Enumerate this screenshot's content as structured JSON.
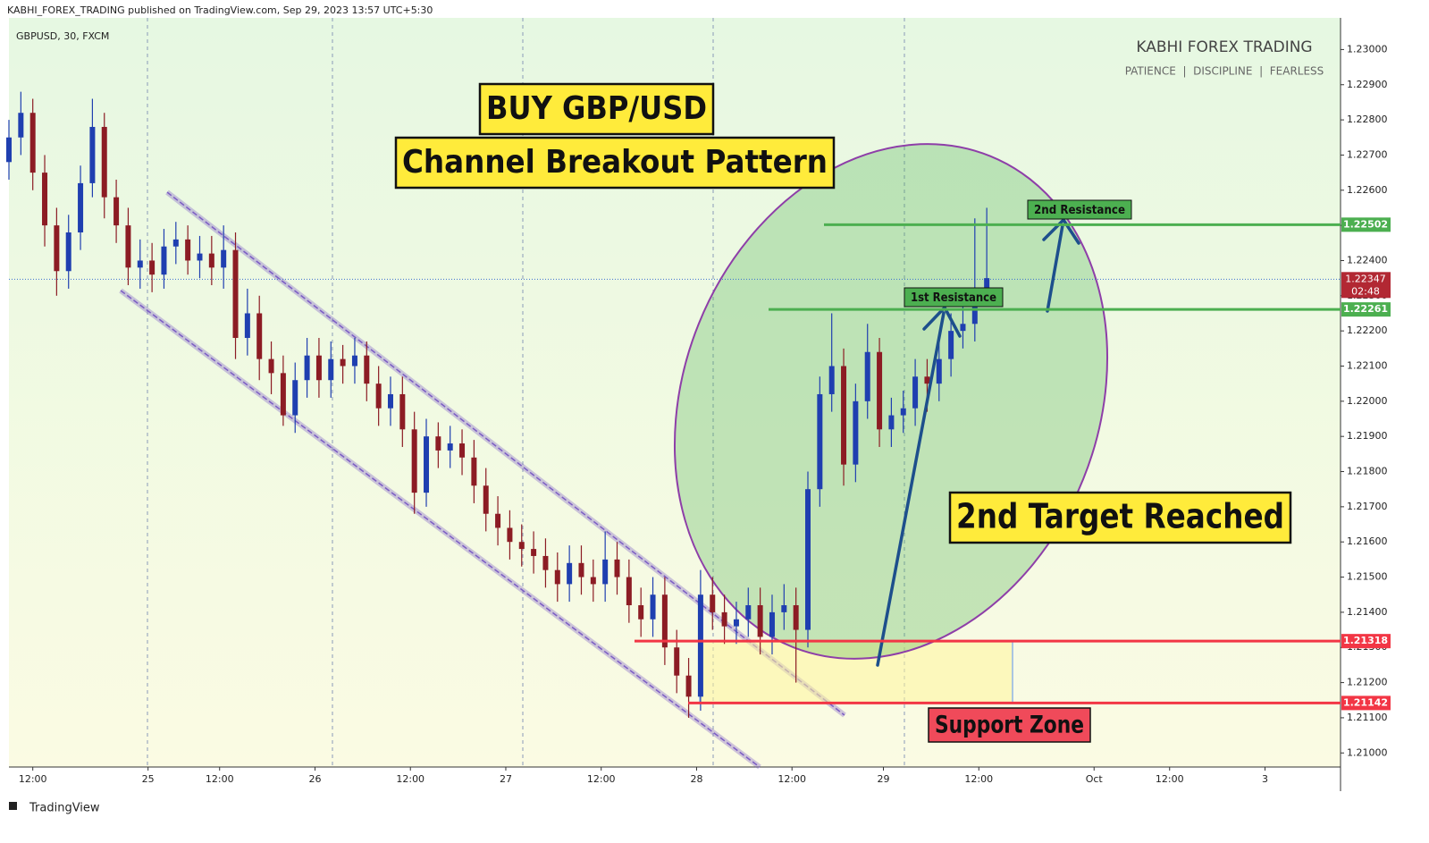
{
  "chart_data": {
    "type": "candlestick",
    "publisher_line": "KABHI_FOREX_TRADING published on TradingView.com, Sep 29, 2023 13:57 UTC+5:30",
    "symbol": "GBPUSD, 30, FXCM",
    "watermark_title": "KABHI FOREX TRADING",
    "watermark_subtitle": "PATIENCE  |  DISCIPLINE  |  FEARLESS",
    "footer": "TradingView",
    "up_color": "#1f3fb0",
    "down_color": "#8c1c24",
    "xlim": [
      0,
      335
    ],
    "ylim": [
      1.2096,
      1.2309
    ],
    "xticks": [
      {
        "value": 6,
        "label": "12:00"
      },
      {
        "value": 35,
        "label": "25"
      },
      {
        "value": 53,
        "label": "12:00"
      },
      {
        "value": 77,
        "label": "26"
      },
      {
        "value": 101,
        "label": "12:00"
      },
      {
        "value": 125,
        "label": "27"
      },
      {
        "value": 149,
        "label": "12:00"
      },
      {
        "value": 173,
        "label": "28"
      },
      {
        "value": 197,
        "label": "12:00"
      },
      {
        "value": 220,
        "label": "29"
      },
      {
        "value": 244,
        "label": "12:00"
      },
      {
        "value": 273,
        "label": "Oct"
      },
      {
        "value": 292,
        "label": "12:00"
      },
      {
        "value": 316,
        "label": "3"
      }
    ],
    "yticks": [
      {
        "value": 1.21,
        "label": "1.21000"
      },
      {
        "value": 1.211,
        "label": "1.21100"
      },
      {
        "value": 1.212,
        "label": "1.21200"
      },
      {
        "value": 1.213,
        "label": "1.21300"
      },
      {
        "value": 1.214,
        "label": "1.21400"
      },
      {
        "value": 1.215,
        "label": "1.21500"
      },
      {
        "value": 1.216,
        "label": "1.21600"
      },
      {
        "value": 1.217,
        "label": "1.21700"
      },
      {
        "value": 1.218,
        "label": "1.21800"
      },
      {
        "value": 1.219,
        "label": "1.21900"
      },
      {
        "value": 1.22,
        "label": "1.22000"
      },
      {
        "value": 1.221,
        "label": "1.22100"
      },
      {
        "value": 1.222,
        "label": "1.22200"
      },
      {
        "value": 1.223,
        "label": "1.22300"
      },
      {
        "value": 1.224,
        "label": "1.22400"
      },
      {
        "value": 1.225,
        "label": "1.22500"
      },
      {
        "value": 1.226,
        "label": "1.22600"
      },
      {
        "value": 1.227,
        "label": "1.22700"
      },
      {
        "value": 1.228,
        "label": "1.22800"
      },
      {
        "value": 1.229,
        "label": "1.22900"
      },
      {
        "value": 1.23,
        "label": "1.23000"
      }
    ],
    "candles": {
      "x": [
        0,
        3,
        6,
        9,
        12,
        15,
        18,
        21,
        24,
        27,
        30,
        33,
        36,
        39,
        42,
        45,
        48,
        51,
        54,
        57,
        60,
        63,
        66,
        69,
        72,
        75,
        78,
        81,
        84,
        87,
        90,
        93,
        96,
        99,
        102,
        105,
        108,
        111,
        114,
        117,
        120,
        123,
        126,
        129,
        132,
        135,
        138,
        141,
        144,
        147,
        150,
        153,
        156,
        159,
        162,
        165,
        168,
        171,
        174,
        177,
        180,
        183,
        186,
        189,
        192,
        195,
        198,
        201,
        204,
        207,
        210,
        213,
        216,
        219,
        222,
        225,
        228,
        231,
        234,
        237,
        240,
        243,
        246
      ],
      "open": [
        1.2268,
        1.2275,
        1.2282,
        1.2265,
        1.225,
        1.2237,
        1.2248,
        1.2262,
        1.2278,
        1.2258,
        1.225,
        1.2238,
        1.224,
        1.2236,
        1.2244,
        1.2246,
        1.224,
        1.2242,
        1.2238,
        1.2243,
        1.2218,
        1.2225,
        1.2212,
        1.2208,
        1.2196,
        1.2206,
        1.2213,
        1.2206,
        1.2212,
        1.221,
        1.2213,
        1.2205,
        1.2198,
        1.2202,
        1.2192,
        1.2174,
        1.219,
        1.2186,
        1.2188,
        1.2184,
        1.2176,
        1.2168,
        1.2164,
        1.216,
        1.2158,
        1.2156,
        1.2152,
        1.2148,
        1.2154,
        1.215,
        1.2148,
        1.2155,
        1.215,
        1.2142,
        1.2138,
        1.2145,
        1.213,
        1.2122,
        1.2116,
        1.2145,
        1.214,
        1.2136,
        1.2138,
        1.2142,
        1.2133,
        1.214,
        1.2142,
        1.2135,
        1.2175,
        1.2202,
        1.221,
        1.2182,
        1.22,
        1.2214,
        1.2192,
        1.2196,
        1.2198,
        1.2207,
        1.2205,
        1.2212,
        1.222,
        1.2222,
        1.2228
      ],
      "high": [
        1.228,
        1.2288,
        1.2286,
        1.227,
        1.2255,
        1.2253,
        1.2267,
        1.2286,
        1.2282,
        1.2263,
        1.2255,
        1.2246,
        1.2245,
        1.2249,
        1.2251,
        1.225,
        1.2247,
        1.2247,
        1.225,
        1.2248,
        1.2232,
        1.223,
        1.2217,
        1.2213,
        1.2211,
        1.2218,
        1.2218,
        1.2217,
        1.2216,
        1.2218,
        1.2217,
        1.221,
        1.2207,
        1.2207,
        1.2197,
        1.2195,
        1.2194,
        1.2193,
        1.2192,
        1.2189,
        1.2181,
        1.2173,
        1.2169,
        1.2165,
        1.2163,
        1.2161,
        1.2157,
        1.2159,
        1.2159,
        1.2155,
        1.2163,
        1.216,
        1.2155,
        1.2147,
        1.215,
        1.215,
        1.2135,
        1.2127,
        1.2152,
        1.215,
        1.2145,
        1.2143,
        1.2147,
        1.2147,
        1.2145,
        1.2148,
        1.2147,
        1.218,
        1.2207,
        1.2225,
        1.2215,
        1.2205,
        1.2222,
        1.2218,
        1.2201,
        1.2203,
        1.2212,
        1.2212,
        1.2217,
        1.2225,
        1.2227,
        1.2252,
        1.2255
      ],
      "low": [
        1.2263,
        1.227,
        1.226,
        1.2244,
        1.223,
        1.2232,
        1.2243,
        1.2258,
        1.2252,
        1.2245,
        1.2233,
        1.2232,
        1.2231,
        1.2232,
        1.2239,
        1.2236,
        1.2235,
        1.2233,
        1.2232,
        1.2212,
        1.2213,
        1.2206,
        1.2202,
        1.2193,
        1.2191,
        1.2201,
        1.2201,
        1.2201,
        1.2205,
        1.2205,
        1.22,
        1.2193,
        1.2193,
        1.2187,
        1.2168,
        1.217,
        1.2181,
        1.2181,
        1.2179,
        1.2171,
        1.2163,
        1.2159,
        1.2155,
        1.2153,
        1.2151,
        1.2147,
        1.2143,
        1.2143,
        1.2145,
        1.2143,
        1.2143,
        1.2145,
        1.2137,
        1.2133,
        1.2133,
        1.2125,
        1.2117,
        1.211,
        1.2112,
        1.2135,
        1.2131,
        1.2131,
        1.2133,
        1.2128,
        1.2128,
        1.2135,
        1.212,
        1.213,
        1.217,
        1.2197,
        1.2176,
        1.2177,
        1.2195,
        1.2187,
        1.2187,
        1.2191,
        1.2193,
        1.2197,
        1.22,
        1.2207,
        1.2215,
        1.2217,
        1.223
      ],
      "close": [
        1.2275,
        1.2282,
        1.2265,
        1.225,
        1.2237,
        1.2248,
        1.2262,
        1.2278,
        1.2258,
        1.225,
        1.2238,
        1.224,
        1.2236,
        1.2244,
        1.2246,
        1.224,
        1.2242,
        1.2238,
        1.2243,
        1.2218,
        1.2225,
        1.2212,
        1.2208,
        1.2196,
        1.2206,
        1.2213,
        1.2206,
        1.2212,
        1.221,
        1.2213,
        1.2205,
        1.2198,
        1.2202,
        1.2192,
        1.2174,
        1.219,
        1.2186,
        1.2188,
        1.2184,
        1.2176,
        1.2168,
        1.2164,
        1.216,
        1.2158,
        1.2156,
        1.2152,
        1.2148,
        1.2154,
        1.215,
        1.2148,
        1.2155,
        1.215,
        1.2142,
        1.2138,
        1.2145,
        1.213,
        1.2122,
        1.2116,
        1.2145,
        1.214,
        1.2136,
        1.2138,
        1.2142,
        1.2133,
        1.214,
        1.2142,
        1.2135,
        1.2175,
        1.2202,
        1.221,
        1.2182,
        1.22,
        1.2214,
        1.2192,
        1.2196,
        1.2198,
        1.2207,
        1.2205,
        1.2212,
        1.222,
        1.2222,
        1.2228,
        1.2235
      ]
    },
    "levels": [
      {
        "value": 1.22502,
        "color": "#4caf50"
      },
      {
        "value": 1.22261,
        "color": "#4caf50"
      },
      {
        "value": 1.21318,
        "color": "#f23645"
      },
      {
        "value": 1.21142,
        "color": "#f23645"
      }
    ],
    "current_price": {
      "value": 1.22347,
      "countdown": "02:48",
      "color": "#b22833"
    },
    "annotations": [
      "BUY GBP/USD",
      "Channel Breakout Pattern",
      "2nd Target Reached",
      "Support Zone",
      "1st Resistance",
      "2nd Resistance"
    ]
  }
}
